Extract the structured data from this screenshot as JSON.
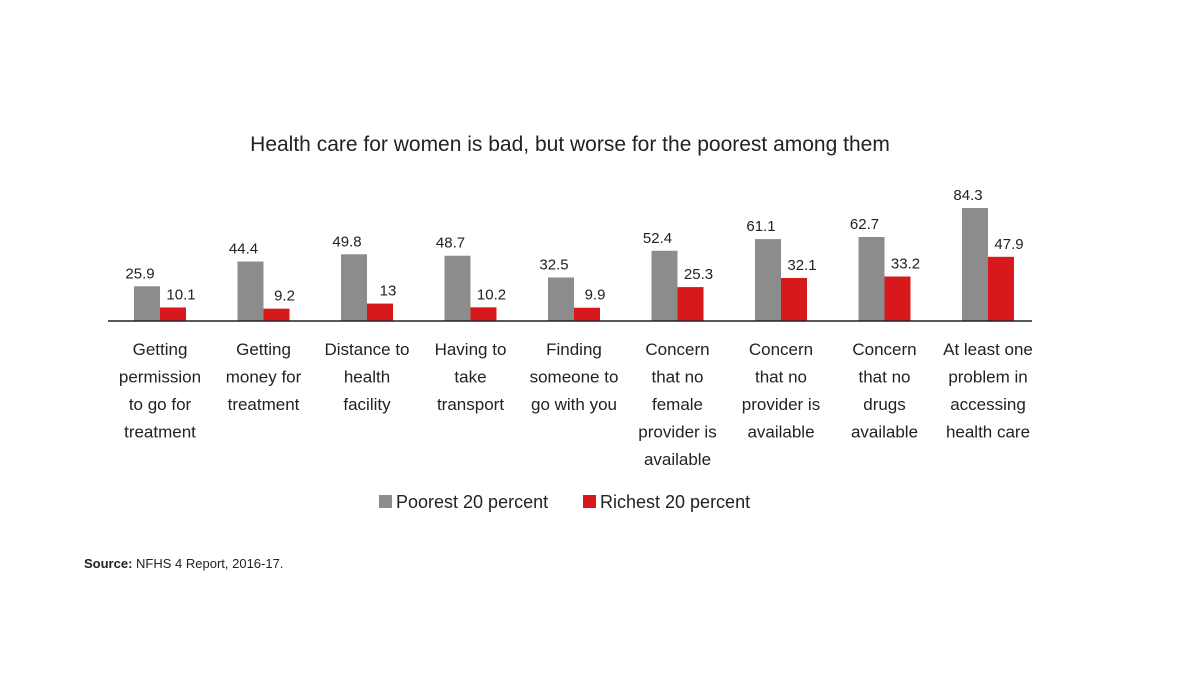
{
  "chart_data": {
    "type": "bar",
    "title": "Health care for women is bad, but worse for the poorest among them",
    "categories": [
      [
        "Getting",
        "permission",
        "to go for",
        "treatment"
      ],
      [
        "Getting",
        "money for",
        "treatment"
      ],
      [
        "Distance to",
        "health",
        "facility"
      ],
      [
        "Having to",
        "take",
        "transport"
      ],
      [
        "Finding",
        "someone to",
        "go with you"
      ],
      [
        "Concern",
        "that no",
        "female",
        "provider is",
        "available"
      ],
      [
        "Concern",
        "that no",
        "provider is",
        "available"
      ],
      [
        "Concern",
        "that no",
        "drugs",
        "available"
      ],
      [
        "At least one",
        "problem in",
        "accessing",
        "health care"
      ]
    ],
    "series": [
      {
        "name": "Poorest 20 percent",
        "color": "#8c8c8c",
        "values": [
          25.9,
          44.4,
          49.8,
          48.7,
          32.5,
          52.4,
          61.1,
          62.7,
          84.3
        ]
      },
      {
        "name": "Richest 20 percent",
        "color": "#d7191c",
        "values": [
          10.1,
          9.2,
          13,
          10.2,
          9.9,
          25.3,
          32.1,
          33.2,
          47.9
        ]
      }
    ],
    "ylim": [
      0,
      100
    ],
    "legend_position": "bottom",
    "grid": false
  },
  "source": {
    "label": "Source:",
    "text": " NFHS 4 Report, 2016-17."
  }
}
